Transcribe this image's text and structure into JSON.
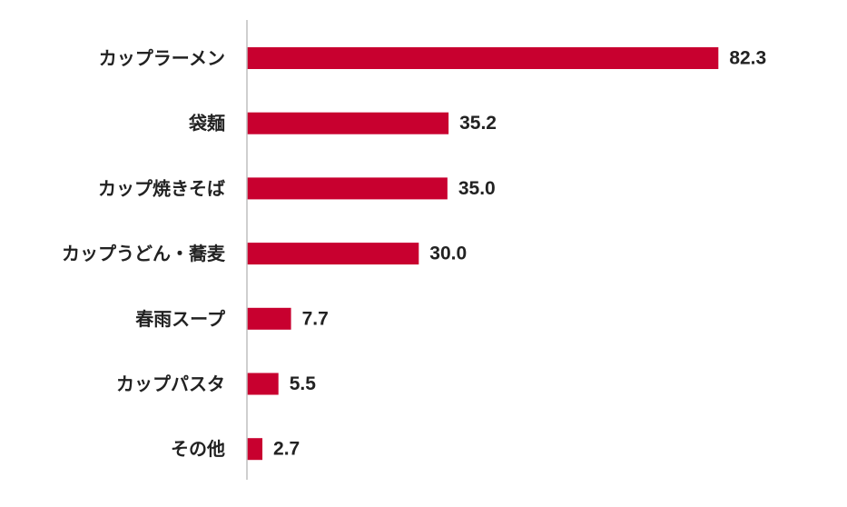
{
  "chart_data": {
    "type": "bar",
    "orientation": "horizontal",
    "categories": [
      "カップラーメン",
      "袋麺",
      "カップ焼きそば",
      "カップうどん・蕎麦",
      "春雨スープ",
      "カップパスタ",
      "その他"
    ],
    "values": [
      82.3,
      35.2,
      35.0,
      30.0,
      7.7,
      5.5,
      2.7
    ],
    "value_labels": [
      "82.3",
      "35.2",
      "35.0",
      "30.0",
      "7.7",
      "5.5",
      "2.7"
    ],
    "xlim": [
      0,
      100
    ],
    "grid": false,
    "legend": "none",
    "bar_color": "#c8002f",
    "axis_color": "#bfbfbf"
  }
}
